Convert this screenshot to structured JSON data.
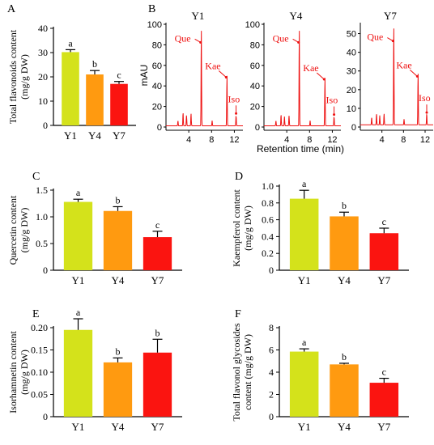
{
  "colors": {
    "Y1": "#d4e21b",
    "Y4": "#ff9a10",
    "Y7": "#fb1410",
    "chrom_line": "#ee1111",
    "axis": "#000000"
  },
  "chart_data": [
    {
      "panel": "A",
      "type": "bar",
      "categories": [
        "Y1",
        "Y4",
        "Y7"
      ],
      "values": [
        30.2,
        21.0,
        17.1
      ],
      "errors": [
        1.0,
        1.6,
        1.0
      ],
      "letters": [
        "a",
        "b",
        "c"
      ],
      "ylabel_lines": [
        "Total flavonoids content",
        "(mg/g DW)"
      ],
      "ylim": [
        0,
        40
      ],
      "yticks": [
        0,
        10,
        20,
        30,
        40
      ],
      "tick_labels": [
        "0",
        "10",
        "20",
        "30",
        "40"
      ]
    },
    {
      "panel": "B",
      "type": "line",
      "ylabel": "mAU",
      "xlabel": "Retention time (min)",
      "peak_labels": [
        "Que",
        "Kae",
        "Iso"
      ],
      "subplots": [
        {
          "title": "Y1",
          "xlim": [
            0,
            13.5
          ],
          "xticks": [
            4,
            8,
            12
          ],
          "ylim": [
            0,
            100
          ],
          "yticks": [
            0,
            20,
            40,
            60,
            80,
            100
          ],
          "peaks": [
            {
              "rt": 2.1,
              "h": 5
            },
            {
              "rt": 3.0,
              "h": 13
            },
            {
              "rt": 3.6,
              "h": 10
            },
            {
              "rt": 4.4,
              "h": 12
            },
            {
              "rt": 6.2,
              "h": 95
            },
            {
              "rt": 8.1,
              "h": 5
            },
            {
              "rt": 10.7,
              "h": 50
            },
            {
              "rt": 12.3,
              "h": 10
            }
          ]
        },
        {
          "title": "Y4",
          "xlim": [
            0,
            13.5
          ],
          "xticks": [
            4,
            8,
            12
          ],
          "ylim": [
            0,
            100
          ],
          "yticks": [
            0,
            20,
            40,
            60,
            80,
            100
          ],
          "peaks": [
            {
              "rt": 2.1,
              "h": 5
            },
            {
              "rt": 3.0,
              "h": 11
            },
            {
              "rt": 3.6,
              "h": 9
            },
            {
              "rt": 4.4,
              "h": 10
            },
            {
              "rt": 6.2,
              "h": 95
            },
            {
              "rt": 8.1,
              "h": 5
            },
            {
              "rt": 10.7,
              "h": 48
            },
            {
              "rt": 12.3,
              "h": 9
            }
          ]
        },
        {
          "title": "Y7",
          "xlim": [
            0,
            13.5
          ],
          "xticks": [
            4,
            8,
            12
          ],
          "ylim": [
            0,
            55
          ],
          "yticks": [
            0,
            10,
            20,
            30,
            40,
            50
          ],
          "peaks": [
            {
              "rt": 2.1,
              "h": 4
            },
            {
              "rt": 3.0,
              "h": 6
            },
            {
              "rt": 3.6,
              "h": 5
            },
            {
              "rt": 4.4,
              "h": 6
            },
            {
              "rt": 6.2,
              "h": 53
            },
            {
              "rt": 8.1,
              "h": 3
            },
            {
              "rt": 10.7,
              "h": 28
            },
            {
              "rt": 12.3,
              "h": 6
            }
          ]
        }
      ]
    },
    {
      "panel": "C",
      "type": "bar",
      "categories": [
        "Y1",
        "Y4",
        "Y7"
      ],
      "values": [
        1.28,
        1.11,
        0.62
      ],
      "errors": [
        0.05,
        0.08,
        0.11
      ],
      "letters": [
        "a",
        "b",
        "c"
      ],
      "ylabel_lines": [
        "Quercetin content",
        "(mg/g DW)"
      ],
      "ylim": [
        0,
        1.5
      ],
      "yticks": [
        0,
        0.5,
        1.0,
        1.5
      ],
      "tick_labels": [
        "0",
        "0.5",
        "1.0",
        "1.5"
      ]
    },
    {
      "panel": "D",
      "type": "bar",
      "categories": [
        "Y1",
        "Y4",
        "Y7"
      ],
      "values": [
        0.85,
        0.64,
        0.44
      ],
      "errors": [
        0.1,
        0.05,
        0.06
      ],
      "letters": [
        "a",
        "b",
        "c"
      ],
      "ylabel_lines": [
        "Kaempferol content",
        "(mg/g DW)"
      ],
      "ylim": [
        0,
        1.0
      ],
      "yticks": [
        0,
        0.2,
        0.4,
        0.6,
        0.8,
        1.0
      ],
      "tick_labels": [
        "0",
        "0.2",
        "0.4",
        "0.6",
        "0.8",
        "1.0"
      ]
    },
    {
      "panel": "E",
      "type": "bar",
      "categories": [
        "Y1",
        "Y4",
        "Y7"
      ],
      "values": [
        0.195,
        0.122,
        0.144
      ],
      "errors": [
        0.025,
        0.01,
        0.03
      ],
      "letters": [
        "a",
        "b",
        "b"
      ],
      "ylabel_lines": [
        "Isorhamnetin content",
        "(mg/g DW)"
      ],
      "ylim": [
        0,
        0.2
      ],
      "yticks": [
        0,
        0.05,
        0.1,
        0.15,
        0.2
      ],
      "tick_labels": [
        "0",
        "0.05",
        "0.10",
        "0.15",
        "0.20"
      ]
    },
    {
      "panel": "F",
      "type": "bar",
      "categories": [
        "Y1",
        "Y4",
        "Y7"
      ],
      "values": [
        5.85,
        4.7,
        3.05
      ],
      "errors": [
        0.25,
        0.1,
        0.4
      ],
      "letters": [
        "a",
        "b",
        "c"
      ],
      "ylabel_lines": [
        "Total flavonol glycosides",
        "content (mg/g DW)"
      ],
      "ylim": [
        0,
        8
      ],
      "yticks": [
        0,
        2,
        4,
        6,
        8
      ],
      "tick_labels": [
        "0",
        "2",
        "4",
        "6",
        "8"
      ]
    }
  ]
}
